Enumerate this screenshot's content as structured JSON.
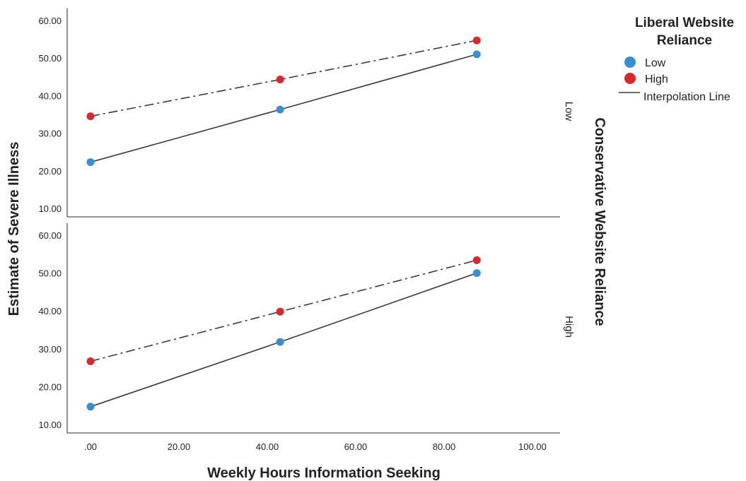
{
  "chart_data": {
    "type": "line",
    "xlabel": "Weekly Hours Information Seeking",
    "ylabel": "Estimate of Severe Illness",
    "facet_label": "Conservative Website Reliance",
    "legend_title": "Liberal Website Reliance",
    "legend_line_label": "Interpolation Line",
    "xlim": [
      -5,
      105
    ],
    "ylim": [
      7,
      62
    ],
    "x_ticks": [
      ".00",
      "20.00",
      "40.00",
      "60.00",
      "80.00",
      "100.00"
    ],
    "x_tick_values": [
      0,
      20,
      40,
      60,
      80,
      100
    ],
    "y_ticks": [
      "10.00",
      "20.00",
      "30.00",
      "40.00",
      "50.00",
      "60.00"
    ],
    "y_tick_values": [
      10,
      20,
      30,
      40,
      50,
      60
    ],
    "legend_placement": "top-right",
    "grid": false,
    "colors": {
      "Low": "#3a8fd0",
      "High": "#d62a2f",
      "line": "#3a3a3a"
    },
    "panels": [
      {
        "label": "Low",
        "series": [
          {
            "name": "Low",
            "x": [
              0,
              42.9,
              87.4
            ],
            "y": [
              22.3,
              36.3,
              51.0
            ],
            "style": "solid"
          },
          {
            "name": "High",
            "x": [
              0,
              42.9,
              87.4
            ],
            "y": [
              34.5,
              44.3,
              54.7
            ],
            "style": "dashdot"
          }
        ]
      },
      {
        "label": "High",
        "series": [
          {
            "name": "Low",
            "x": [
              0,
              42.9,
              87.4
            ],
            "y": [
              14.7,
              31.8,
              50.0
            ],
            "style": "solid"
          },
          {
            "name": "High",
            "x": [
              0,
              42.9,
              87.4
            ],
            "y": [
              26.7,
              39.8,
              53.4
            ],
            "style": "dashdot"
          }
        ]
      }
    ]
  }
}
